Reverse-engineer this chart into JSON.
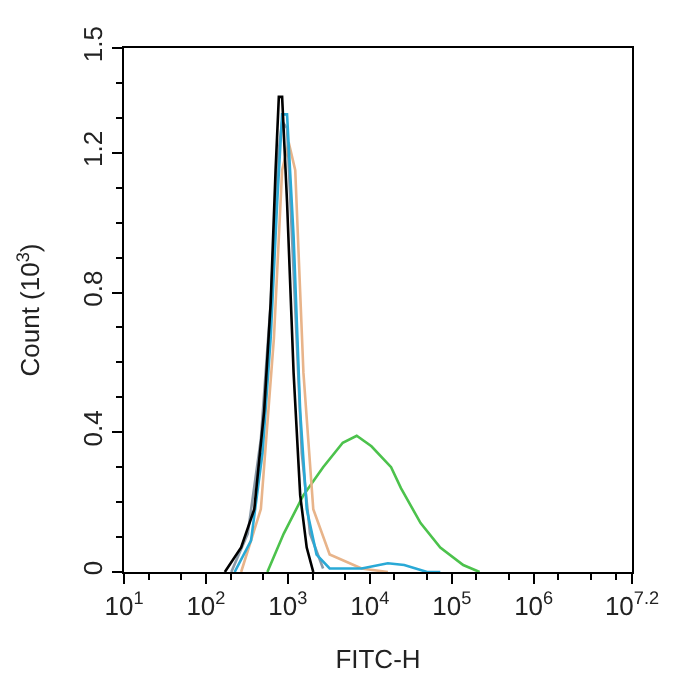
{
  "chart_data": {
    "type": "line",
    "xlabel": "FITC-H",
    "ylabel": "Count (10$^{3}$)",
    "log": "x",
    "marker": "none",
    "line_style": "solid",
    "xlim": [
      10,
      15848932
    ],
    "xticks": [
      {
        "value": 10,
        "label": "10$^{1}$"
      },
      {
        "value": 100,
        "label": "10$^{2}$"
      },
      {
        "value": 1000,
        "label": "10$^{3}$"
      },
      {
        "value": 10000,
        "label": "10$^{4}$"
      },
      {
        "value": 100000,
        "label": "10$^{5}$"
      },
      {
        "value": 1000000,
        "label": "10$^{6}$"
      },
      {
        "value": 15848932,
        "label": "10$^{7.2}$"
      }
    ],
    "ylim": [
      0,
      1.5
    ],
    "yticks": [
      0,
      0.4,
      0.8,
      1.2,
      1.5
    ],
    "series": [
      {
        "color": "#4cc24c",
        "x": [
          562,
          891,
          1549,
          2692,
          4677,
          6918,
          10471,
          18197,
          23988,
          41687,
          72444,
          138038,
          218776
        ],
        "values": [
          0,
          0.11,
          0.22,
          0.3,
          0.37,
          0.39,
          0.36,
          0.3,
          0.24,
          0.14,
          0.07,
          0.02,
          0
        ]
      },
      {
        "color": "#e8b48a",
        "x": [
          269,
          468,
          676,
          851,
          1023,
          1230,
          1549,
          2042,
          3236,
          7943,
          16596
        ],
        "values": [
          0,
          0.18,
          0.67,
          1.15,
          1.23,
          1.15,
          0.57,
          0.18,
          0.05,
          0.01,
          0
        ]
      },
      {
        "color": "#8a9aa8",
        "x": [
          204,
          324,
          468,
          617,
          759,
          851,
          977,
          1175,
          1479,
          1862,
          2692
        ],
        "values": [
          0,
          0.11,
          0.38,
          0.77,
          1.19,
          1.29,
          1.27,
          0.86,
          0.34,
          0.11,
          0.01
        ]
      },
      {
        "color": "#29a9d6",
        "x": [
          224,
          355,
          490,
          617,
          741,
          851,
          977,
          1175,
          1413,
          1698,
          2239,
          3236,
          7943,
          16596,
          26303,
          50119,
          72444
        ],
        "values": [
          0,
          0.09,
          0.34,
          0.67,
          1.06,
          1.31,
          1.31,
          0.96,
          0.46,
          0.18,
          0.05,
          0.01,
          0.01,
          0.025,
          0.02,
          0,
          0
        ]
      },
      {
        "color": "#000000",
        "x": [
          170,
          269,
          389,
          513,
          617,
          708,
          776,
          851,
          977,
          1175,
          1413,
          1698,
          2042
        ],
        "values": [
          0,
          0.07,
          0.18,
          0.46,
          0.77,
          1.15,
          1.36,
          1.36,
          1.06,
          0.57,
          0.22,
          0.07,
          0
        ]
      }
    ]
  }
}
